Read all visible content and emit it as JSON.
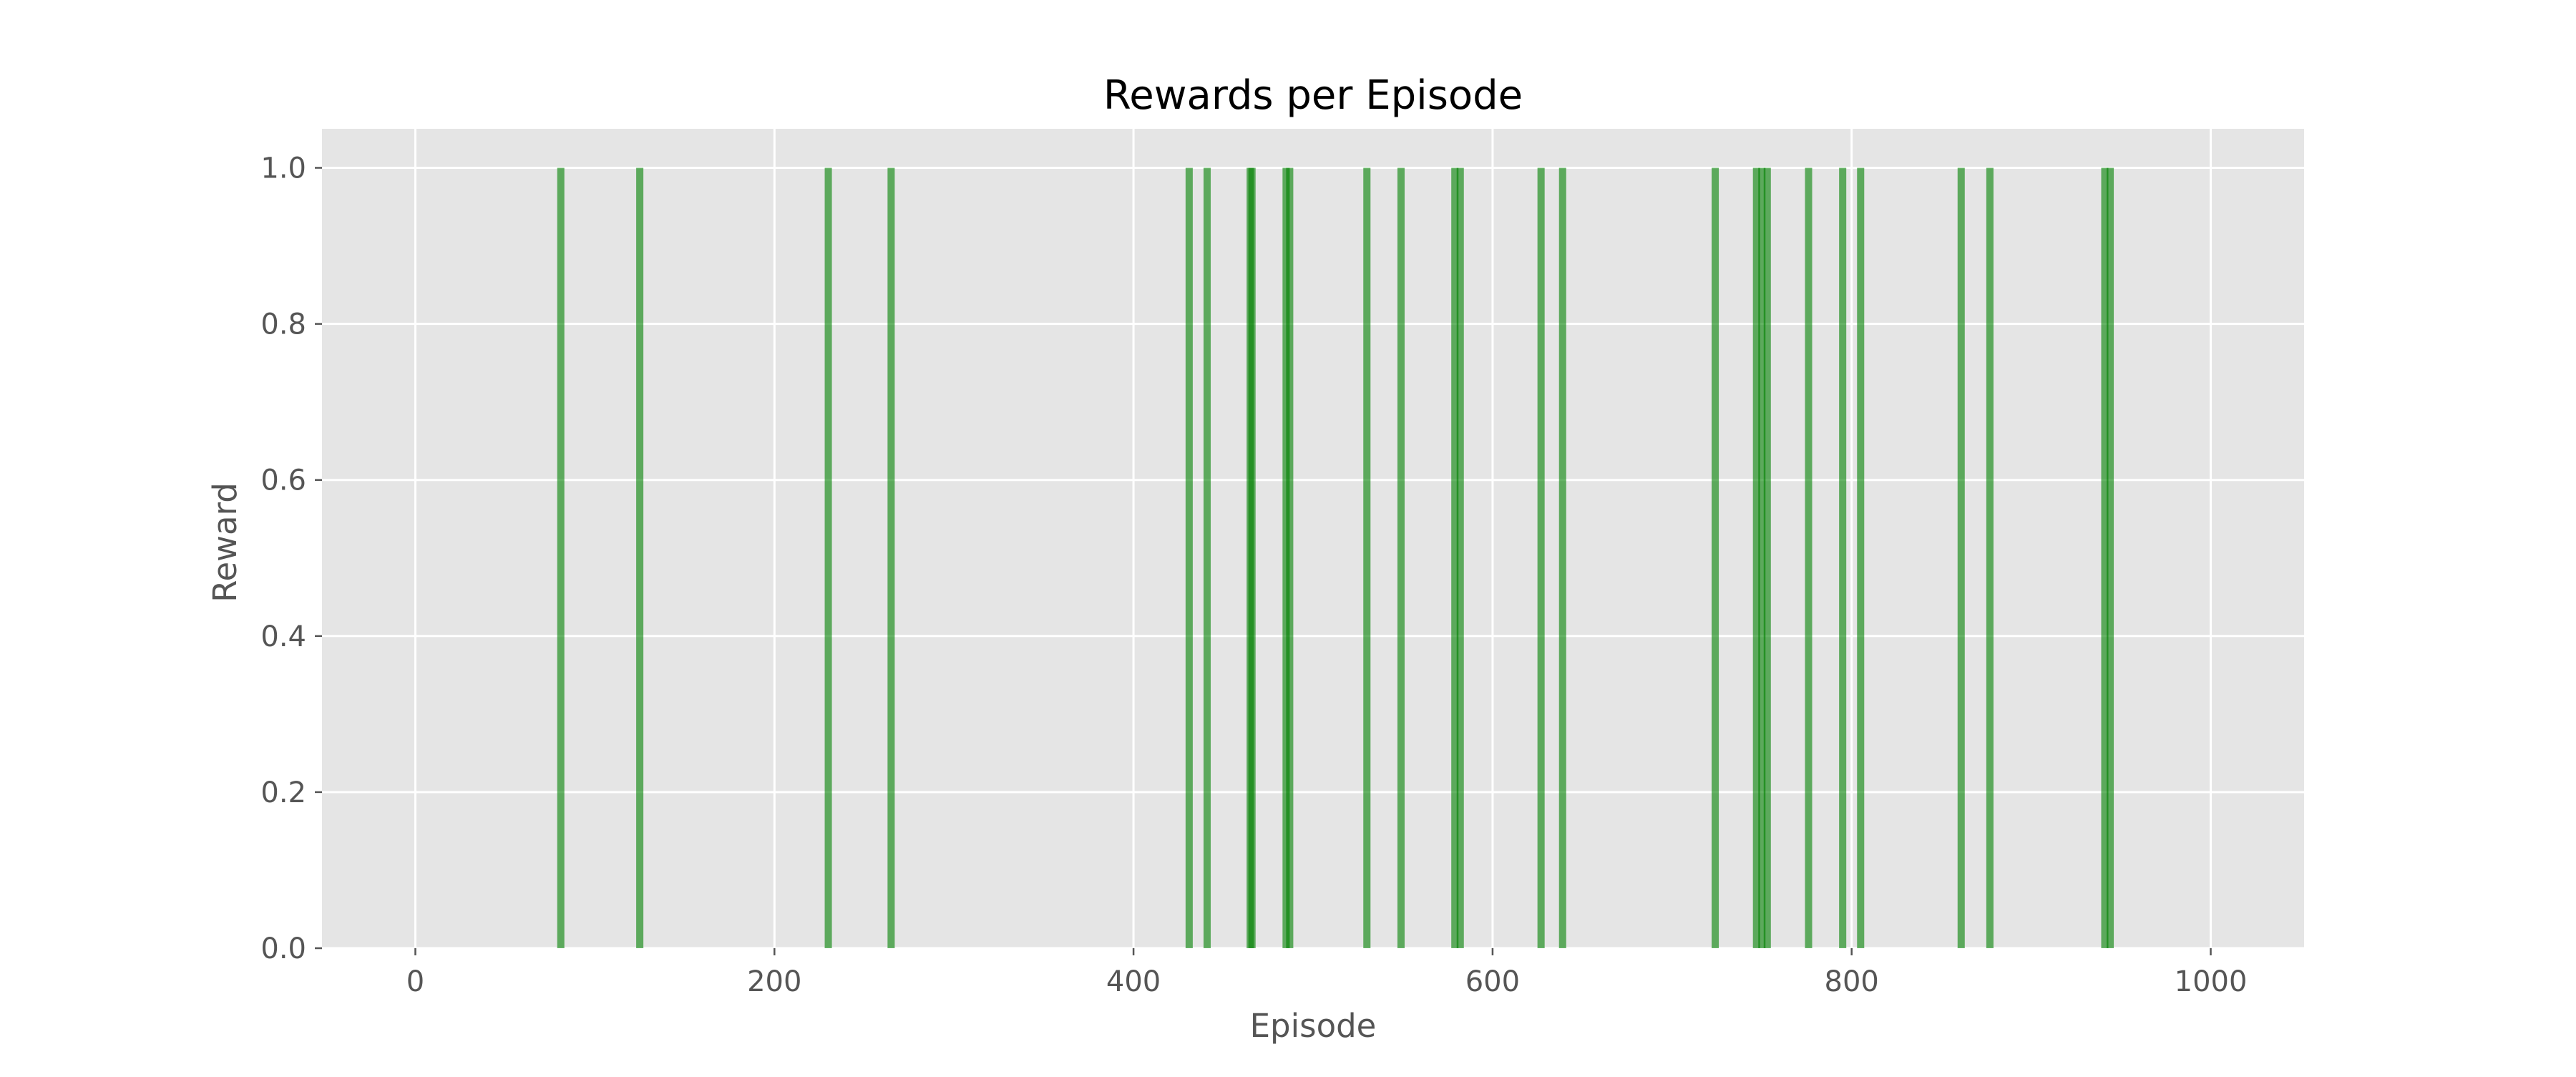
{
  "chart_data": {
    "type": "bar",
    "title": "Rewards per Episode",
    "xlabel": "Episode",
    "ylabel": "Reward",
    "xlim": [
      -52,
      1052
    ],
    "ylim": [
      0,
      1.05
    ],
    "xticks": [
      0,
      200,
      400,
      600,
      800,
      1000
    ],
    "yticks": [
      0.0,
      0.2,
      0.4,
      0.6,
      0.8,
      1.0
    ],
    "xtick_labels": [
      "0",
      "200",
      "400",
      "600",
      "800",
      "1000"
    ],
    "ytick_labels": [
      "0.0",
      "0.2",
      "0.4",
      "0.6",
      "0.8",
      "1.0"
    ],
    "grid": true,
    "colors": {
      "plot_background": "#e5e5e5",
      "grid": "#ffffff",
      "bar": "#008000",
      "bar_opacity": 0.6
    },
    "x": [
      81,
      125,
      230,
      265,
      431,
      441,
      465,
      466,
      485,
      487,
      530,
      549,
      579,
      582,
      627,
      639,
      724,
      747,
      750,
      753,
      776,
      795,
      805,
      861,
      877,
      941,
      944
    ],
    "values": [
      1,
      1,
      1,
      1,
      1,
      1,
      1,
      1,
      1,
      1,
      1,
      1,
      1,
      1,
      1,
      1,
      1,
      1,
      1,
      1,
      1,
      1,
      1,
      1,
      1,
      1,
      1
    ]
  }
}
